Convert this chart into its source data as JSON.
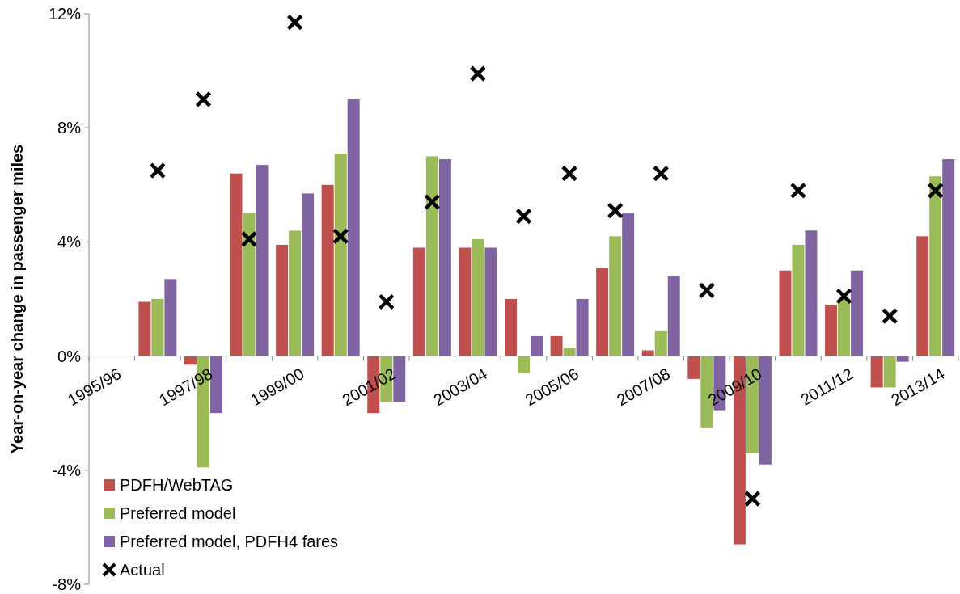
{
  "chart_data": {
    "type": "bar",
    "ylabel": "Year-on-year change in passenger miles",
    "categories": [
      "1995/96",
      null,
      "1997/98",
      null,
      "1999/00",
      null,
      "2001/02",
      null,
      "2003/04",
      null,
      "2005/06",
      null,
      "2007/08",
      null,
      "2009/10",
      null,
      "2011/12",
      null,
      "2013/14"
    ],
    "series": [
      {
        "name": "PDFH/WebTAG",
        "color": "#c0504d",
        "values": [
          null,
          1.9,
          -0.3,
          6.4,
          3.9,
          6.0,
          -2.0,
          3.8,
          3.8,
          2.0,
          0.7,
          3.1,
          0.2,
          -0.8,
          -6.6,
          3.0,
          1.8,
          -1.1,
          4.2
        ]
      },
      {
        "name": "Preferred model",
        "color": "#9bbb59",
        "values": [
          null,
          2.0,
          -3.9,
          5.0,
          4.4,
          7.1,
          -1.6,
          7.0,
          4.1,
          -0.6,
          0.3,
          4.2,
          0.9,
          -2.5,
          -3.4,
          3.9,
          2.0,
          -1.1,
          6.3
        ]
      },
      {
        "name": "Preferred model, PDFH4 fares",
        "color": "#8064a2",
        "values": [
          null,
          2.7,
          -2.0,
          6.7,
          5.7,
          9.0,
          -1.6,
          6.9,
          3.8,
          0.7,
          2.0,
          5.0,
          2.8,
          -1.9,
          -3.8,
          4.4,
          3.0,
          -0.2,
          6.9
        ]
      },
      {
        "name": "Actual",
        "type": "scatter",
        "marker": "cross",
        "color": "#000000",
        "values": [
          null,
          6.5,
          9.0,
          4.1,
          11.7,
          4.2,
          1.9,
          5.4,
          9.9,
          4.9,
          6.4,
          5.1,
          6.4,
          2.3,
          -5.0,
          5.8,
          2.1,
          1.4,
          5.8
        ]
      }
    ],
    "ylim": [
      -8,
      12
    ],
    "yticks": [
      {
        "value": -8,
        "label": "-8%"
      },
      {
        "value": -4,
        "label": "-4%"
      },
      {
        "value": 0,
        "label": "0%"
      },
      {
        "value": 4,
        "label": "4%"
      },
      {
        "value": 8,
        "label": "8%"
      },
      {
        "value": 12,
        "label": "12%"
      }
    ],
    "legend": "bottom left"
  }
}
